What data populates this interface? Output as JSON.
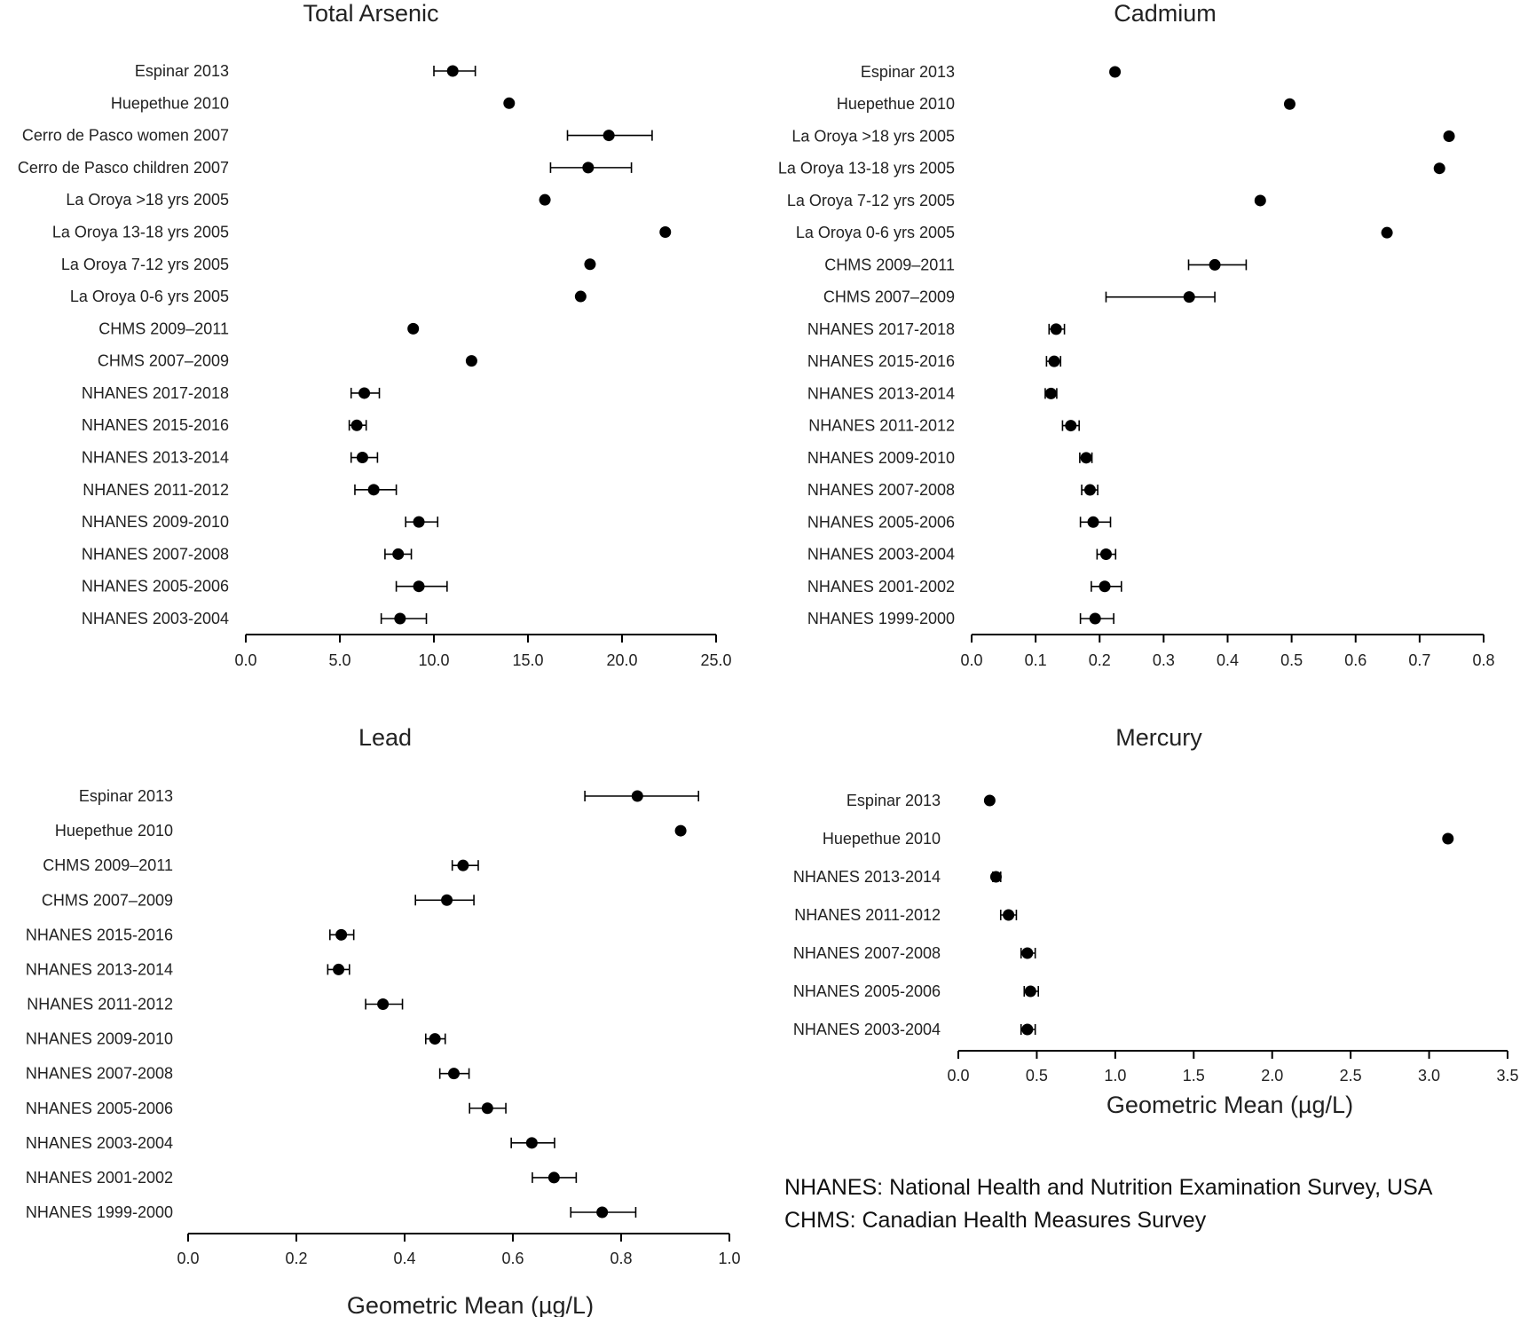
{
  "chart_data": [
    {
      "type": "scatter",
      "title": "Total Arsenic",
      "xlabel": "",
      "xlim": [
        0,
        25
      ],
      "xticks": [
        "0.0",
        "5.0",
        "10.0",
        "15.0",
        "20.0",
        "25.0"
      ],
      "categories": [
        "Espinar 2013",
        "Huepethue 2010",
        "Cerro de Pasco women 2007",
        "Cerro de Pasco children 2007",
        "La Oroya >18 yrs 2005",
        "La Oroya 13-18 yrs 2005",
        "La Oroya 7-12 yrs 2005",
        "La Oroya 0-6 yrs 2005",
        "CHMS 2009–2011",
        "CHMS 2007–2009",
        "NHANES 2017-2018",
        "NHANES 2015-2016",
        "NHANES 2013-2014",
        "NHANES 2011-2012",
        "NHANES 2009-2010",
        "NHANES 2007-2008",
        "NHANES 2005-2006",
        "NHANES 2003-2004"
      ],
      "values": [
        11.0,
        14.0,
        19.3,
        18.2,
        15.9,
        22.3,
        18.3,
        17.8,
        8.9,
        12.0,
        6.3,
        5.9,
        6.2,
        6.8,
        9.2,
        8.1,
        9.2,
        8.2
      ],
      "err_low": [
        10.0,
        null,
        17.1,
        16.2,
        null,
        null,
        null,
        null,
        null,
        null,
        5.6,
        5.5,
        5.6,
        5.8,
        8.5,
        7.4,
        8.0,
        7.2
      ],
      "err_high": [
        12.2,
        null,
        21.6,
        20.5,
        null,
        null,
        null,
        null,
        null,
        null,
        7.1,
        6.4,
        7.0,
        8.0,
        10.2,
        8.8,
        10.7,
        9.6
      ]
    },
    {
      "type": "scatter",
      "title": "Cadmium",
      "xlabel": "",
      "xlim": [
        0,
        0.8
      ],
      "xticks": [
        "0.0",
        "0.1",
        "0.2",
        "0.3",
        "0.4",
        "0.5",
        "0.6",
        "0.7",
        "0.8"
      ],
      "categories": [
        "Espinar 2013",
        "Huepethue 2010",
        "La Oroya >18 yrs 2005",
        "La Oroya 13-18 yrs 2005",
        "La Oroya 7-12 yrs 2005",
        "La Oroya 0-6 yrs 2005",
        "CHMS 2009–2011",
        "CHMS 2007–2009",
        "NHANES 2017-2018",
        "NHANES 2015-2016",
        "NHANES 2013-2014",
        "NHANES 2011-2012",
        "NHANES 2009-2010",
        "NHANES 2007-2008",
        "NHANES 2005-2006",
        "NHANES 2003-2004",
        "NHANES 2001-2002",
        "NHANES 1999-2000"
      ],
      "values": [
        0.224,
        0.497,
        0.746,
        0.731,
        0.451,
        0.649,
        0.38,
        0.34,
        0.132,
        0.129,
        0.124,
        0.155,
        0.179,
        0.185,
        0.19,
        0.21,
        0.208,
        0.193
      ],
      "err_low": [
        null,
        null,
        null,
        null,
        null,
        null,
        0.339,
        0.21,
        0.121,
        0.117,
        0.115,
        0.142,
        0.169,
        0.172,
        0.17,
        0.196,
        0.187,
        0.17
      ],
      "err_high": [
        null,
        null,
        null,
        null,
        null,
        null,
        0.429,
        0.38,
        0.145,
        0.139,
        0.133,
        0.168,
        0.188,
        0.197,
        0.217,
        0.225,
        0.234,
        0.222
      ]
    },
    {
      "type": "scatter",
      "title": "Lead",
      "xlabel": "Geometric Mean (µg/L)",
      "xlim": [
        0,
        1.0
      ],
      "xticks": [
        "0.0",
        "0.2",
        "0.4",
        "0.6",
        "0.8",
        "1.0"
      ],
      "categories": [
        "Espinar 2013",
        "Huepethue 2010",
        "CHMS 2009–2011",
        "CHMS 2007–2009",
        "NHANES 2015-2016",
        "NHANES 2013-2014",
        "NHANES 2011-2012",
        "NHANES 2009-2010",
        "NHANES 2007-2008",
        "NHANES 2005-2006",
        "NHANES 2003-2004",
        "NHANES 2001-2002",
        "NHANES 1999-2000"
      ],
      "values": [
        0.83,
        0.91,
        0.508,
        0.478,
        0.283,
        0.278,
        0.36,
        0.456,
        0.491,
        0.553,
        0.635,
        0.676,
        0.765
      ],
      "err_low": [
        0.733,
        null,
        0.488,
        0.42,
        0.262,
        0.258,
        0.328,
        0.439,
        0.465,
        0.52,
        0.597,
        0.636,
        0.707
      ],
      "err_high": [
        0.943,
        null,
        0.536,
        0.528,
        0.306,
        0.298,
        0.396,
        0.475,
        0.519,
        0.587,
        0.677,
        0.717,
        0.827
      ]
    },
    {
      "type": "scatter",
      "title": "Mercury",
      "xlabel": "Geometric Mean (µg/L)",
      "xlim": [
        0,
        3.5
      ],
      "xticks": [
        "0.0",
        "0.5",
        "1.0",
        "1.5",
        "2.0",
        "2.5",
        "3.0",
        "3.5"
      ],
      "categories": [
        "Espinar 2013",
        "Huepethue 2010",
        "NHANES 2013-2014",
        "NHANES 2011-2012",
        "NHANES 2007-2008",
        "NHANES 2005-2006",
        "NHANES 2003-2004"
      ],
      "values": [
        0.2,
        3.12,
        0.24,
        0.32,
        0.44,
        0.46,
        0.44
      ],
      "err_low": [
        null,
        null,
        0.22,
        0.27,
        0.4,
        0.42,
        0.4
      ],
      "err_high": [
        null,
        null,
        0.27,
        0.37,
        0.49,
        0.51,
        0.49
      ]
    }
  ],
  "notes": {
    "line1": "NHANES: National Health and Nutrition Examination Survey, USA",
    "line2": "CHMS: Canadian Health Measures Survey"
  }
}
